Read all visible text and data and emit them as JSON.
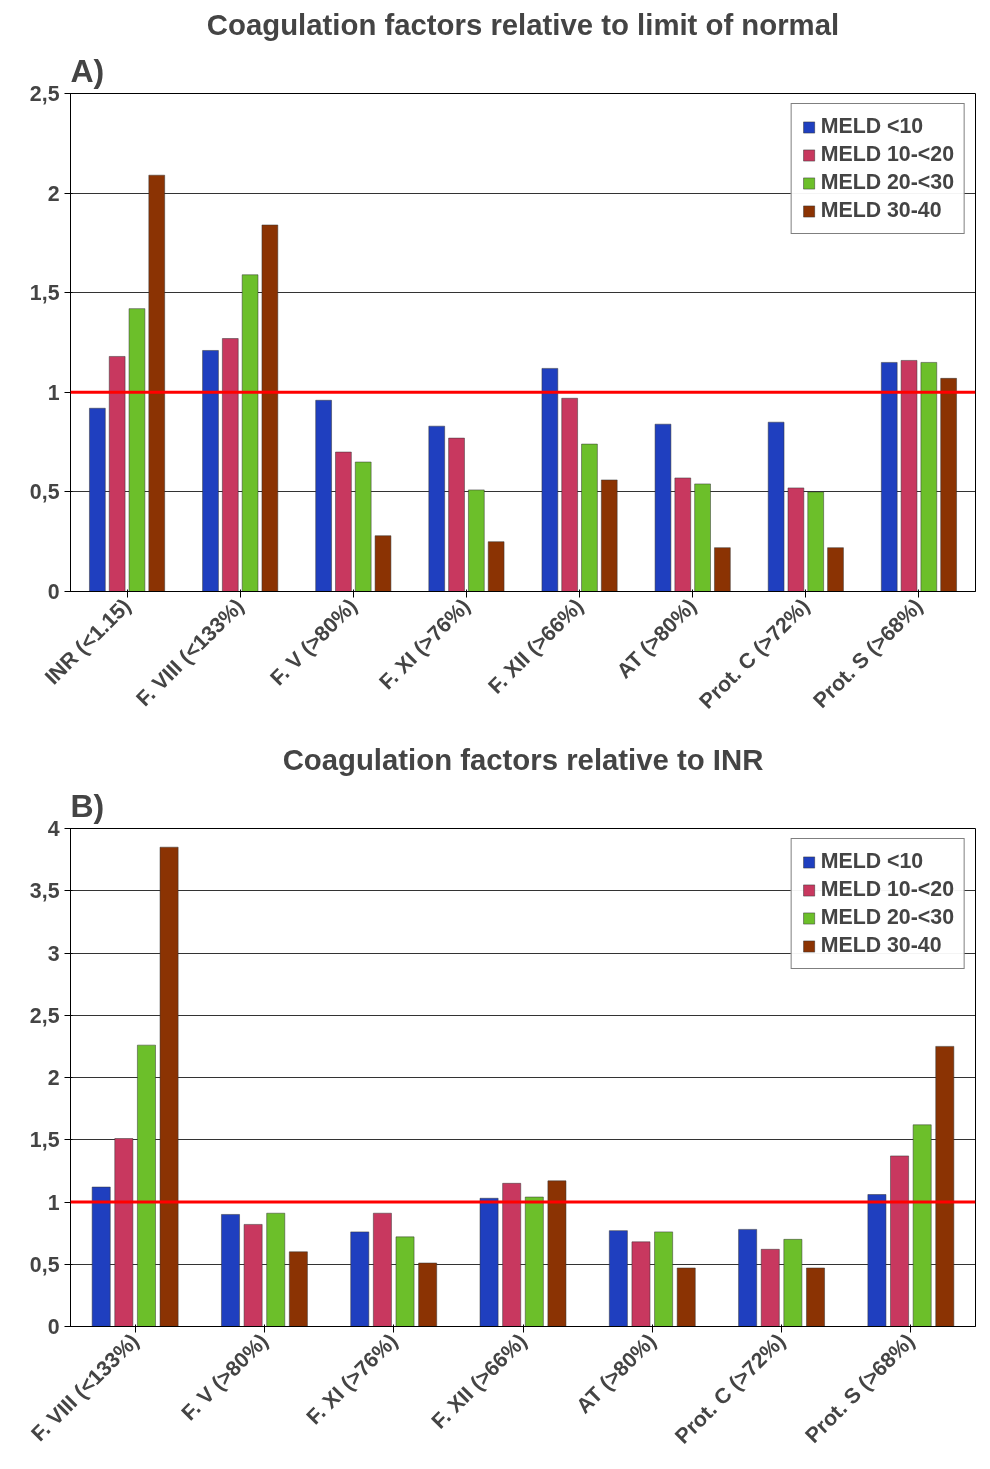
{
  "chart_data": [
    {
      "type": "bar",
      "title": "Coagulation factors relative to limit of normal",
      "annotations": [
        "A)"
      ],
      "categories": [
        "INR (<1.15)",
        "F. VIII (<133%)",
        "F. V (>80%)",
        "F. XI (>76%)",
        "F. XII (>66%)",
        "AT (>80%)",
        "Prot. C (>72%)",
        "Prot. S (>68%)"
      ],
      "series": [
        {
          "name": "MELD <10",
          "color": "#1f3fbf",
          "values": [
            0.92,
            1.21,
            0.96,
            0.83,
            1.12,
            0.84,
            0.85,
            1.15
          ]
        },
        {
          "name": "MELD 10-<20",
          "color": "#c8385f",
          "values": [
            1.18,
            1.27,
            0.7,
            0.77,
            0.97,
            0.57,
            0.52,
            1.16
          ]
        },
        {
          "name": "MELD 20-<30",
          "color": "#6cbf2a",
          "values": [
            1.42,
            1.59,
            0.65,
            0.51,
            0.74,
            0.54,
            0.5,
            1.15
          ]
        },
        {
          "name": "MELD 30-40",
          "color": "#8b3303",
          "values": [
            2.09,
            1.84,
            0.28,
            0.25,
            0.56,
            0.22,
            0.22,
            1.07
          ]
        }
      ],
      "ylim": [
        0,
        2.5
      ],
      "yticks": [
        0,
        {
          "value": 0.5,
          "label": "0,5"
        },
        1,
        {
          "value": 1.5,
          "label": "1,5"
        },
        2,
        {
          "value": 2.5,
          "label": "2,5"
        }
      ],
      "ref_lines": [
        {
          "axis": "y",
          "value": 1,
          "color": "#ff0000"
        }
      ],
      "grid": "y",
      "legend": "top right"
    },
    {
      "type": "bar",
      "title": "Coagulation factors relative to INR",
      "annotations": [
        "B)"
      ],
      "categories": [
        "F. VIII (<133%)",
        "F. V (>80%)",
        "F. XI (>76%)",
        "F. XII (>66%)",
        "AT (>80%)",
        "Prot. C (>72%)",
        "Prot. S (>68%)"
      ],
      "series": [
        {
          "name": "MELD <10",
          "color": "#1f3fbf",
          "values": [
            1.12,
            0.9,
            0.76,
            1.03,
            0.77,
            0.78,
            1.06
          ]
        },
        {
          "name": "MELD 10-<20",
          "color": "#c8385f",
          "values": [
            1.51,
            0.82,
            0.91,
            1.15,
            0.68,
            0.62,
            1.37
          ]
        },
        {
          "name": "MELD 20-<30",
          "color": "#6cbf2a",
          "values": [
            2.26,
            0.91,
            0.72,
            1.04,
            0.76,
            0.7,
            1.62
          ]
        },
        {
          "name": "MELD 30-40",
          "color": "#8b3303",
          "values": [
            3.85,
            0.6,
            0.51,
            1.17,
            0.47,
            0.47,
            2.25
          ]
        }
      ],
      "ylim": [
        0,
        4
      ],
      "yticks": [
        0,
        {
          "value": 0.5,
          "label": "0,5"
        },
        1,
        {
          "value": 1.5,
          "label": "1,5"
        },
        2,
        {
          "value": 2.5,
          "label": "2,5"
        },
        3,
        {
          "value": 3.5,
          "label": "3,5"
        },
        4
      ],
      "ref_lines": [
        {
          "axis": "y",
          "value": 1,
          "color": "#ff0000"
        }
      ],
      "grid": "y",
      "legend": "top right"
    }
  ]
}
